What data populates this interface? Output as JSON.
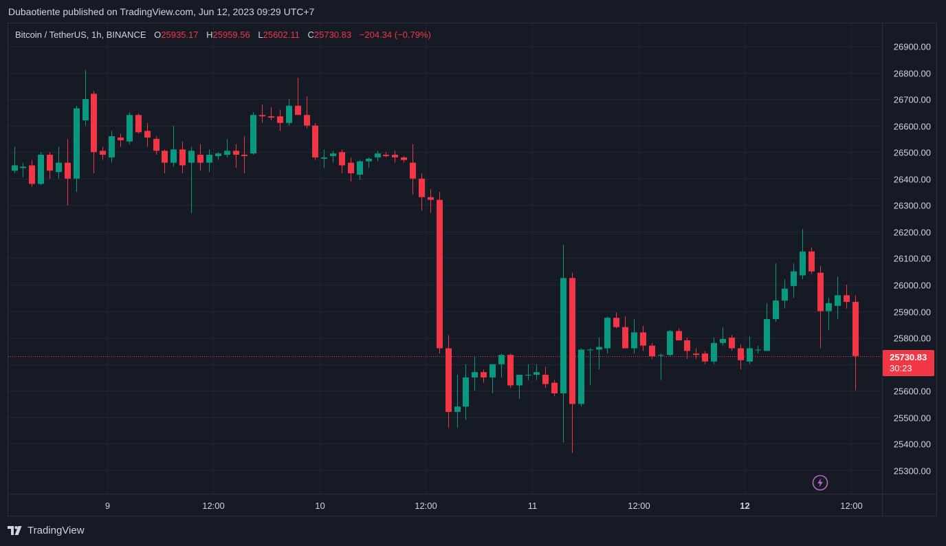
{
  "header": {
    "publish_line": "Dubaotiente published on TradingView.com, Jun 12, 2023 09:29 UTC+7"
  },
  "legend": {
    "symbol": "Bitcoin / TetherUS, 1h, BINANCE",
    "o_label": "O",
    "o_value": "25935.17",
    "h_label": "H",
    "h_value": "25959.56",
    "l_label": "L",
    "l_value": "25602.11",
    "c_label": "C",
    "c_value": "25730.83",
    "change": "−204.34 (−0.79%)"
  },
  "price_tag": {
    "price": "25730.83",
    "countdown": "30:23"
  },
  "footer": {
    "brand": "TradingView"
  },
  "colors": {
    "background": "#161a25",
    "grid": "#232733",
    "up": "#089981",
    "down": "#f23645",
    "axis_text": "#d1d4dc"
  },
  "chart_data": {
    "type": "candlestick",
    "title": "",
    "xlabel": "",
    "ylabel": "",
    "ylim": [
      25220,
      26980
    ],
    "y_ticks": [
      "26900.00",
      "26800.00",
      "26700.00",
      "26600.00",
      "26500.00",
      "26400.00",
      "26300.00",
      "26200.00",
      "26100.00",
      "26000.00",
      "25900.00",
      "25800.00",
      "25700.00",
      "25600.00",
      "25500.00",
      "25400.00",
      "25300.00"
    ],
    "x_ticks": [
      {
        "label": "9",
        "bar": 10.5,
        "bold": false
      },
      {
        "label": "12:00",
        "bar": 22.5,
        "bold": false
      },
      {
        "label": "10",
        "bar": 34.5,
        "bold": false
      },
      {
        "label": "12:00",
        "bar": 46.5,
        "bold": false
      },
      {
        "label": "11",
        "bar": 58.5,
        "bold": false
      },
      {
        "label": "12:00",
        "bar": 70.5,
        "bold": false
      },
      {
        "label": "12",
        "bar": 82.5,
        "bold": true
      },
      {
        "label": "12:00",
        "bar": 94.5,
        "bold": false
      }
    ],
    "last_price": 25730.83,
    "candles": [
      {
        "o": 26430,
        "h": 26520,
        "l": 26420,
        "c": 26450
      },
      {
        "o": 26440,
        "h": 26460,
        "l": 26405,
        "c": 26445
      },
      {
        "o": 26450,
        "h": 26470,
        "l": 26370,
        "c": 26380
      },
      {
        "o": 26380,
        "h": 26500,
        "l": 26375,
        "c": 26490
      },
      {
        "o": 26490,
        "h": 26500,
        "l": 26400,
        "c": 26430
      },
      {
        "o": 26425,
        "h": 26520,
        "l": 26400,
        "c": 26460
      },
      {
        "o": 26460,
        "h": 26550,
        "l": 26300,
        "c": 26400
      },
      {
        "o": 26400,
        "h": 26675,
        "l": 26350,
        "c": 26665
      },
      {
        "o": 26620,
        "h": 26810,
        "l": 26600,
        "c": 26700
      },
      {
        "o": 26720,
        "h": 26730,
        "l": 26420,
        "c": 26500
      },
      {
        "o": 26505,
        "h": 26520,
        "l": 26470,
        "c": 26490
      },
      {
        "o": 26480,
        "h": 26580,
        "l": 26460,
        "c": 26560
      },
      {
        "o": 26555,
        "h": 26570,
        "l": 26520,
        "c": 26545
      },
      {
        "o": 26540,
        "h": 26650,
        "l": 26530,
        "c": 26640
      },
      {
        "o": 26640,
        "h": 26645,
        "l": 26570,
        "c": 26575
      },
      {
        "o": 26580,
        "h": 26610,
        "l": 26520,
        "c": 26555
      },
      {
        "o": 26550,
        "h": 26560,
        "l": 26490,
        "c": 26505
      },
      {
        "o": 26505,
        "h": 26510,
        "l": 26420,
        "c": 26460
      },
      {
        "o": 26460,
        "h": 26600,
        "l": 26445,
        "c": 26510
      },
      {
        "o": 26510,
        "h": 26540,
        "l": 26420,
        "c": 26450
      },
      {
        "o": 26460,
        "h": 26520,
        "l": 26270,
        "c": 26505
      },
      {
        "o": 26490,
        "h": 26530,
        "l": 26430,
        "c": 26460
      },
      {
        "o": 26460,
        "h": 26510,
        "l": 26425,
        "c": 26490
      },
      {
        "o": 26485,
        "h": 26500,
        "l": 26470,
        "c": 26495
      },
      {
        "o": 26490,
        "h": 26550,
        "l": 26480,
        "c": 26505
      },
      {
        "o": 26505,
        "h": 26530,
        "l": 26440,
        "c": 26490
      },
      {
        "o": 26490,
        "h": 26560,
        "l": 26420,
        "c": 26485
      },
      {
        "o": 26495,
        "h": 26650,
        "l": 26490,
        "c": 26640
      },
      {
        "o": 26640,
        "h": 26680,
        "l": 26610,
        "c": 26635
      },
      {
        "o": 26635,
        "h": 26670,
        "l": 26620,
        "c": 26630
      },
      {
        "o": 26635,
        "h": 26660,
        "l": 26580,
        "c": 26610
      },
      {
        "o": 26610,
        "h": 26700,
        "l": 26600,
        "c": 26675
      },
      {
        "o": 26675,
        "h": 26780,
        "l": 26640,
        "c": 26640
      },
      {
        "o": 26640,
        "h": 26710,
        "l": 26590,
        "c": 26600
      },
      {
        "o": 26600,
        "h": 26610,
        "l": 26470,
        "c": 26480
      },
      {
        "o": 26475,
        "h": 26510,
        "l": 26440,
        "c": 26480
      },
      {
        "o": 26485,
        "h": 26505,
        "l": 26460,
        "c": 26495
      },
      {
        "o": 26500,
        "h": 26510,
        "l": 26420,
        "c": 26450
      },
      {
        "o": 26460,
        "h": 26480,
        "l": 26390,
        "c": 26420
      },
      {
        "o": 26415,
        "h": 26470,
        "l": 26395,
        "c": 26465
      },
      {
        "o": 26465,
        "h": 26480,
        "l": 26440,
        "c": 26475
      },
      {
        "o": 26480,
        "h": 26505,
        "l": 26465,
        "c": 26495
      },
      {
        "o": 26490,
        "h": 26500,
        "l": 26480,
        "c": 26485
      },
      {
        "o": 26490,
        "h": 26505,
        "l": 26460,
        "c": 26480
      },
      {
        "o": 26480,
        "h": 26485,
        "l": 26460,
        "c": 26470
      },
      {
        "o": 26460,
        "h": 26530,
        "l": 26340,
        "c": 26400
      },
      {
        "o": 26400,
        "h": 26420,
        "l": 26280,
        "c": 26330
      },
      {
        "o": 26330,
        "h": 26360,
        "l": 26270,
        "c": 26320
      },
      {
        "o": 26320,
        "h": 26350,
        "l": 25740,
        "c": 25760
      },
      {
        "o": 25760,
        "h": 25810,
        "l": 25460,
        "c": 25520
      },
      {
        "o": 25520,
        "h": 25660,
        "l": 25460,
        "c": 25540
      },
      {
        "o": 25540,
        "h": 25700,
        "l": 25490,
        "c": 25650
      },
      {
        "o": 25650,
        "h": 25730,
        "l": 25600,
        "c": 25670
      },
      {
        "o": 25670,
        "h": 25680,
        "l": 25630,
        "c": 25650
      },
      {
        "o": 25650,
        "h": 25700,
        "l": 25590,
        "c": 25700
      },
      {
        "o": 25700,
        "h": 25740,
        "l": 25650,
        "c": 25735
      },
      {
        "o": 25735,
        "h": 25740,
        "l": 25610,
        "c": 25620
      },
      {
        "o": 25620,
        "h": 25660,
        "l": 25570,
        "c": 25660
      },
      {
        "o": 25660,
        "h": 25700,
        "l": 25640,
        "c": 25660
      },
      {
        "o": 25660,
        "h": 25700,
        "l": 25640,
        "c": 25670
      },
      {
        "o": 25660,
        "h": 25690,
        "l": 25610,
        "c": 25625
      },
      {
        "o": 25630,
        "h": 25640,
        "l": 25580,
        "c": 25590
      },
      {
        "o": 25590,
        "h": 26150,
        "l": 25405,
        "c": 26025
      },
      {
        "o": 26025,
        "h": 26045,
        "l": 25365,
        "c": 25550
      },
      {
        "o": 25550,
        "h": 25760,
        "l": 25540,
        "c": 25755
      },
      {
        "o": 25755,
        "h": 25760,
        "l": 25620,
        "c": 25755
      },
      {
        "o": 25755,
        "h": 25800,
        "l": 25680,
        "c": 25765
      },
      {
        "o": 25760,
        "h": 25880,
        "l": 25740,
        "c": 25875
      },
      {
        "o": 25875,
        "h": 25895,
        "l": 25835,
        "c": 25840
      },
      {
        "o": 25840,
        "h": 25880,
        "l": 25760,
        "c": 25760
      },
      {
        "o": 25760,
        "h": 25870,
        "l": 25740,
        "c": 25820
      },
      {
        "o": 25820,
        "h": 25845,
        "l": 25750,
        "c": 25770
      },
      {
        "o": 25770,
        "h": 25780,
        "l": 25720,
        "c": 25730
      },
      {
        "o": 25735,
        "h": 25740,
        "l": 25640,
        "c": 25735
      },
      {
        "o": 25735,
        "h": 25830,
        "l": 25730,
        "c": 25825
      },
      {
        "o": 25825,
        "h": 25835,
        "l": 25790,
        "c": 25790
      },
      {
        "o": 25790,
        "h": 25800,
        "l": 25720,
        "c": 25750
      },
      {
        "o": 25740,
        "h": 25760,
        "l": 25720,
        "c": 25735
      },
      {
        "o": 25740,
        "h": 25750,
        "l": 25700,
        "c": 25710
      },
      {
        "o": 25710,
        "h": 25800,
        "l": 25700,
        "c": 25780
      },
      {
        "o": 25780,
        "h": 25840,
        "l": 25770,
        "c": 25795
      },
      {
        "o": 25800,
        "h": 25810,
        "l": 25750,
        "c": 25760
      },
      {
        "o": 25760,
        "h": 25775,
        "l": 25680,
        "c": 25715
      },
      {
        "o": 25710,
        "h": 25805,
        "l": 25700,
        "c": 25760
      },
      {
        "o": 25755,
        "h": 25770,
        "l": 25740,
        "c": 25755
      },
      {
        "o": 25750,
        "h": 25930,
        "l": 25750,
        "c": 25870
      },
      {
        "o": 25870,
        "h": 26080,
        "l": 25860,
        "c": 25940
      },
      {
        "o": 25940,
        "h": 26020,
        "l": 25910,
        "c": 25985
      },
      {
        "o": 25995,
        "h": 26080,
        "l": 25950,
        "c": 26050
      },
      {
        "o": 26035,
        "h": 26210,
        "l": 26020,
        "c": 26125
      },
      {
        "o": 26125,
        "h": 26140,
        "l": 26040,
        "c": 26050
      },
      {
        "o": 26045,
        "h": 26070,
        "l": 25760,
        "c": 25900
      },
      {
        "o": 25900,
        "h": 25950,
        "l": 25830,
        "c": 25930
      },
      {
        "o": 25920,
        "h": 26030,
        "l": 25870,
        "c": 25960
      },
      {
        "o": 25960,
        "h": 26000,
        "l": 25910,
        "c": 25935
      },
      {
        "o": 25935.17,
        "h": 25959.56,
        "l": 25602.11,
        "c": 25730.83
      }
    ]
  }
}
